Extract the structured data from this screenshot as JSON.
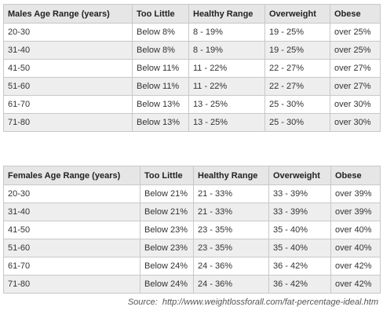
{
  "tables": [
    {
      "header": [
        "Males Age Range (years)",
        "Too Little",
        "Healthy Range",
        "Overweight",
        "Obese"
      ],
      "rows": [
        [
          "20-30",
          "Below 8%",
          "8 - 19%",
          "19 - 25%",
          "over 25%"
        ],
        [
          "31-40",
          "Below 8%",
          "8 - 19%",
          "19 - 25%",
          "over 25%"
        ],
        [
          "41-50",
          "Below 11%",
          "11 - 22%",
          "22 - 27%",
          "over 27%"
        ],
        [
          "51-60",
          "Below 11%",
          "11 - 22%",
          "22 - 27%",
          "over 27%"
        ],
        [
          "61-70",
          "Below 13%",
          "13 - 25%",
          "25 - 30%",
          "over 30%"
        ],
        [
          "71-80",
          "Below 13%",
          "13 - 25%",
          "25 - 30%",
          "over 30%"
        ]
      ]
    },
    {
      "header": [
        "Females Age Range (years)",
        "Too Little",
        "Healthy Range",
        "Overweight",
        "Obese"
      ],
      "rows": [
        [
          "20-30",
          "Below 21%",
          "21 - 33%",
          "33 - 39%",
          "over 39%"
        ],
        [
          "31-40",
          "Below 21%",
          "21 - 33%",
          "33 - 39%",
          "over 39%"
        ],
        [
          "41-50",
          "Below 23%",
          "23 - 35%",
          "35 - 40%",
          "over 40%"
        ],
        [
          "51-60",
          "Below 23%",
          "23 - 35%",
          "35 - 40%",
          "over 40%"
        ],
        [
          "61-70",
          "Below 24%",
          "24 - 36%",
          "36 - 42%",
          "over 42%"
        ],
        [
          "71-80",
          "Below 24%",
          "24 - 36%",
          "36 - 42%",
          "over 42%"
        ]
      ]
    }
  ],
  "source": "Source:  http://www.weightlossforall.com/fat-percentage-ideal.htm"
}
